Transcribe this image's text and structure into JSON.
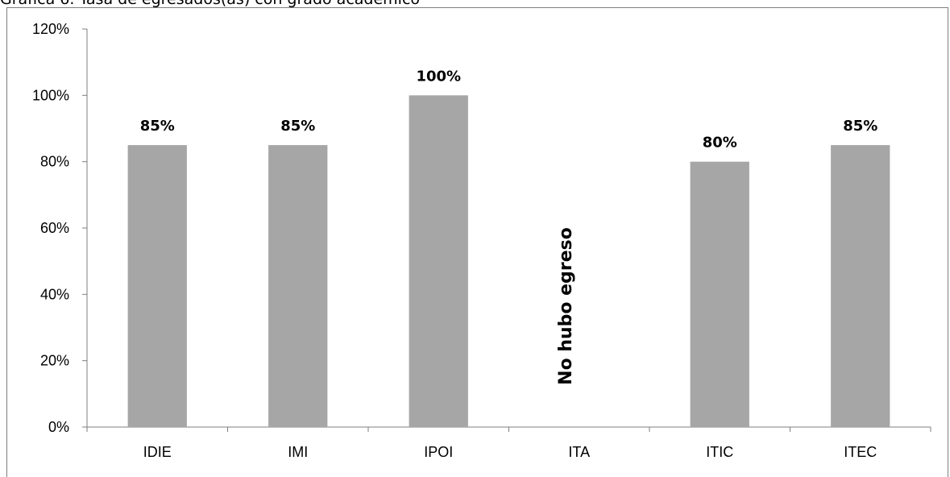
{
  "header": {
    "text": "Gráfica 6. Tasa de egresados(as) con grado académico"
  },
  "chart_data": {
    "type": "bar",
    "categories": [
      "IDIE",
      "IMI",
      "IPOI",
      "ITA",
      "ITIC",
      "ITEC"
    ],
    "values": [
      85,
      85,
      100,
      null,
      80,
      85
    ],
    "value_labels": [
      "85%",
      "85%",
      "100%",
      "",
      "80%",
      "85%"
    ],
    "title": "",
    "xlabel": "",
    "ylabel": "",
    "ylim": [
      0,
      120
    ],
    "yticks": [
      0,
      20,
      40,
      60,
      80,
      100,
      120
    ],
    "ytick_labels": [
      "0%",
      "20%",
      "40%",
      "60%",
      "80%",
      "100%",
      "120%"
    ],
    "grid": false,
    "bar_color": "#a6a6a6",
    "axis_color": "#7f7f7f",
    "annotations": [
      {
        "category": "ITA",
        "text": "No hubo egreso",
        "orientation": "vertical"
      }
    ]
  }
}
